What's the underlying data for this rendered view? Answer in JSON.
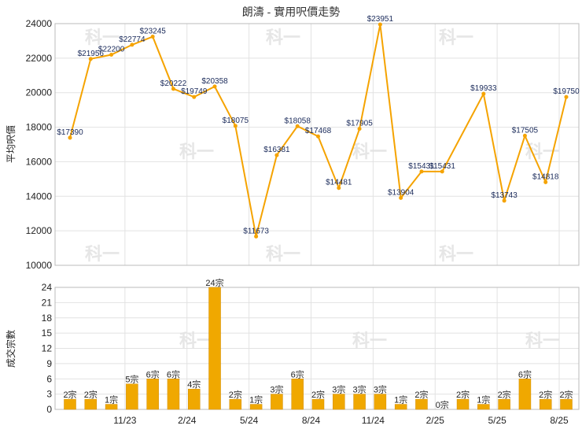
{
  "chart_data": [
    {
      "type": "line",
      "title": "朗濤 - 實用呎價走勢",
      "ylabel": "平均呎價",
      "ylim": [
        10000,
        24000
      ],
      "yticks": [
        10000,
        12000,
        14000,
        16000,
        18000,
        20000,
        22000,
        24000
      ],
      "grid": true,
      "color": "#f5a300",
      "x": [
        "2023-08",
        "2023-09",
        "2023-10",
        "2023-11",
        "2023-12",
        "2024-01",
        "2024-02",
        "2024-03",
        "2024-04",
        "2024-05",
        "2024-06",
        "2024-07",
        "2024-08",
        "2024-09",
        "2024-10",
        "2024-11",
        "2024-12",
        "2025-01",
        "2025-02",
        "2025-03",
        "2025-04",
        "2025-05",
        "2025-06",
        "2025-07",
        "2025-08"
      ],
      "series": [
        {
          "values": [
            17390,
            21956,
            22200,
            22774,
            23245,
            20222,
            19749,
            20358,
            18075,
            11673,
            16381,
            18058,
            17468,
            14481,
            17905,
            23951,
            13904,
            15431,
            15431,
            null,
            19933,
            13743,
            17505,
            14818,
            19750
          ],
          "labels": [
            "$17390",
            "$21956",
            "$22200",
            "$22774",
            "$23245",
            "$20222",
            "$19749",
            "$20358",
            "$18075",
            "$11673",
            "$16381",
            "$18058",
            "$17468",
            "$14481",
            "$17905",
            "$23951",
            "$13904",
            "$15431",
            "$15431",
            "",
            "$19933",
            "$13743",
            "$17505",
            "$14818",
            "$19750"
          ]
        }
      ]
    },
    {
      "type": "bar",
      "ylabel": "成交宗數",
      "ylim": [
        0,
        24
      ],
      "yticks": [
        0,
        3,
        6,
        9,
        12,
        15,
        18,
        21,
        24
      ],
      "grid": true,
      "bar_color": "#f0a800",
      "categories": [
        "2023-08",
        "2023-09",
        "2023-10",
        "2023-11",
        "2023-12",
        "2024-01",
        "2024-02",
        "2024-03",
        "2024-04",
        "2024-05",
        "2024-06",
        "2024-07",
        "2024-08",
        "2024-09",
        "2024-10",
        "2024-11",
        "2024-12",
        "2025-01",
        "2025-02",
        "2025-03",
        "2025-04",
        "2025-05",
        "2025-06",
        "2025-07",
        "2025-08"
      ],
      "values": [
        2,
        2,
        1,
        5,
        6,
        6,
        4,
        24,
        2,
        1,
        3,
        6,
        2,
        3,
        3,
        3,
        1,
        2,
        0,
        2,
        1,
        2,
        6,
        2,
        2
      ],
      "labels": [
        "2宗",
        "2宗",
        "1宗",
        "5宗",
        "6宗",
        "6宗",
        "4宗",
        "24宗",
        "2宗",
        "1宗",
        "3宗",
        "6宗",
        "2宗",
        "3宗",
        "3宗",
        "3宗",
        "1宗",
        "2宗",
        "0宗",
        "2宗",
        "1宗",
        "2宗",
        "6宗",
        "2宗",
        "2宗"
      ],
      "xtick_labels": [
        "11/23",
        "2/24",
        "5/24",
        "8/24",
        "11/24",
        "2/25",
        "5/25",
        "8/25"
      ],
      "xtick_index": [
        3,
        6,
        9,
        12,
        15,
        18,
        21,
        24
      ]
    }
  ],
  "watermark": "科一"
}
